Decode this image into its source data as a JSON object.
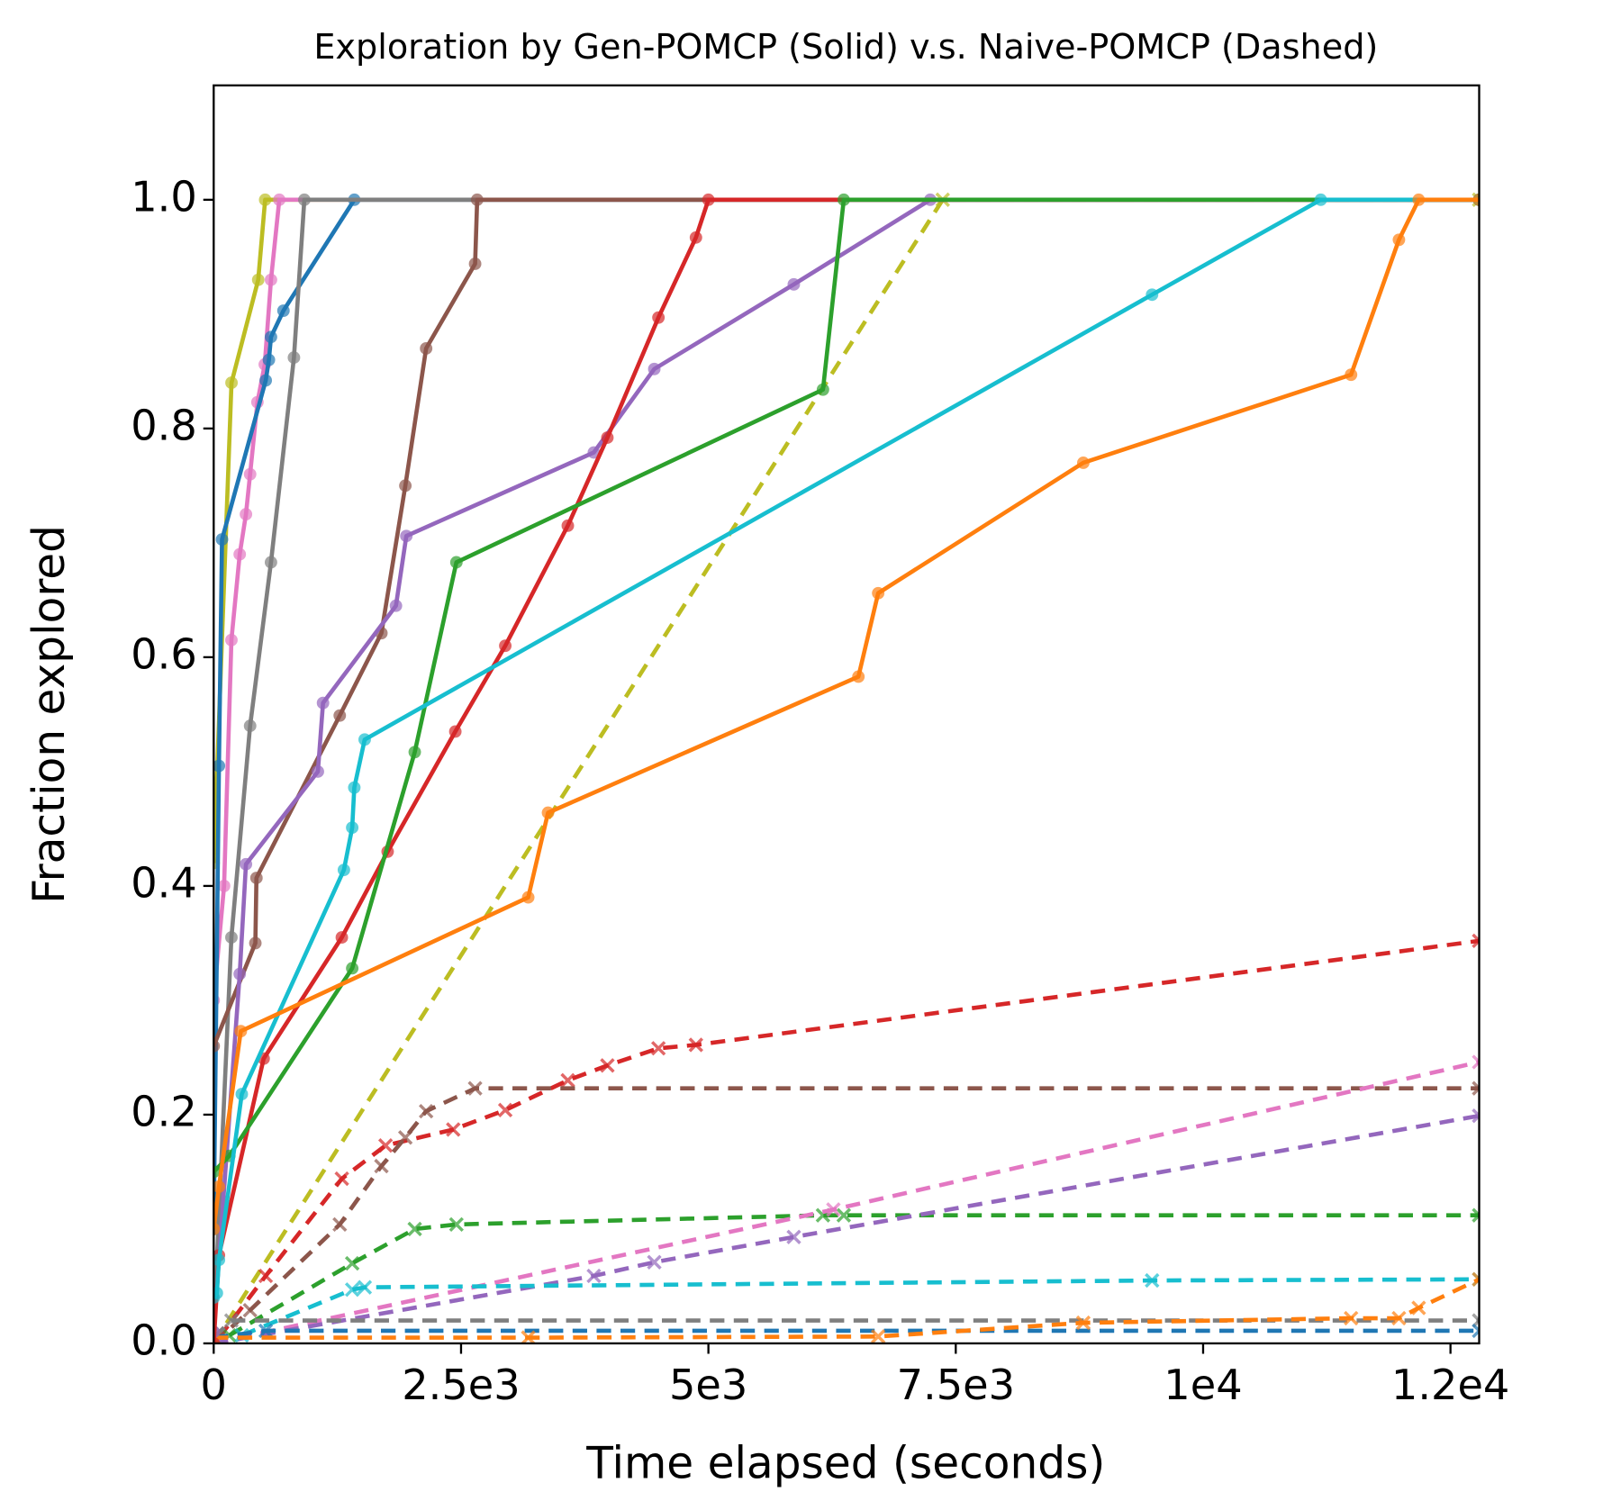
{
  "chart_data": {
    "type": "line",
    "title": "Exploration by Gen-POMCP (Solid) v.s. Naive-POMCP (Dashed)",
    "xlabel": "Time elapsed (seconds)",
    "ylabel": "Fraction explored",
    "xlim": [
      0,
      12790
    ],
    "ylim": [
      0,
      1.1
    ],
    "xticks": [
      0,
      {
        "value": 2500,
        "label": "2.5e3"
      },
      {
        "value": 5000,
        "label": "5e3"
      },
      {
        "value": 7500,
        "label": "7.5e3"
      },
      {
        "value": 10000,
        "label": "1e4"
      },
      {
        "value": 12500,
        "label": "1.2e4"
      }
    ],
    "yticks": [
      {
        "value": 0,
        "label": "0.0"
      },
      0.2,
      0.4,
      0.6,
      0.8,
      {
        "value": 1,
        "label": "1.0"
      }
    ],
    "series": [
      {
        "color": "#bcbd22",
        "linestyle": "dashed",
        "marker": "x",
        "x": [
          0,
          7368,
          12790
        ],
        "values": [
          0,
          1.0,
          1.0
        ]
      },
      {
        "color": "#d62728",
        "linestyle": "dashed",
        "marker": "x",
        "x": [
          53,
          526,
          1295,
          1737,
          2421,
          2947,
          3579,
          3979,
          4495,
          4874,
          12790
        ],
        "values": [
          0.005,
          0.059,
          0.144,
          0.173,
          0.187,
          0.204,
          0.23,
          0.243,
          0.258,
          0.261,
          0.352
        ]
      },
      {
        "color": "#8c564b",
        "linestyle": "dashed",
        "marker": "x",
        "x": [
          0,
          368,
          1274,
          1695,
          1937,
          2147,
          2642,
          12790
        ],
        "values": [
          0,
          0.029,
          0.104,
          0.155,
          0.18,
          0.203,
          0.223,
          0.223
        ]
      },
      {
        "color": "#2ca02c",
        "linestyle": "dashed",
        "marker": "x",
        "x": [
          158,
          1400,
          2032,
          2453,
          6158,
          6368,
          12790
        ],
        "values": [
          0.007,
          0.07,
          0.1,
          0.104,
          0.112,
          0.112,
          0.112
        ]
      },
      {
        "color": "#e377c2",
        "linestyle": "dashed",
        "marker": "x",
        "x": [
          0,
          6263,
          12790
        ],
        "values": [
          0,
          0.117,
          0.246
        ]
      },
      {
        "color": "#9467bd",
        "linestyle": "dashed",
        "marker": "x",
        "x": [
          0,
          3842,
          4453,
          5863,
          12790
        ],
        "values": [
          0,
          0.059,
          0.071,
          0.093,
          0.199
        ]
      },
      {
        "color": "#17becf",
        "linestyle": "dashed",
        "marker": "x",
        "x": [
          284,
          1400,
          1526,
          9484,
          12790
        ],
        "values": [
          0.007,
          0.047,
          0.049,
          0.055,
          0.056
        ]
      },
      {
        "color": "#7f7f7f",
        "linestyle": "dashed",
        "marker": "x",
        "x": [
          0,
          179,
          12790
        ],
        "values": [
          0.005,
          0.02,
          0.02
        ]
      },
      {
        "color": "#1f77b4",
        "linestyle": "dashed",
        "marker": "x",
        "x": [
          0,
          526,
          12790
        ],
        "values": [
          0.005,
          0.011,
          0.011
        ]
      },
      {
        "color": "#ff7f0e",
        "linestyle": "dashed",
        "marker": "x",
        "x": [
          0,
          3179,
          6716,
          8789,
          11495,
          11979,
          12179,
          12790
        ],
        "values": [
          0.005,
          0.005,
          0.006,
          0.018,
          0.022,
          0.022,
          0.031,
          0.056
        ]
      },
      {
        "color": "#bcbd22",
        "linestyle": "solid",
        "marker": "o",
        "x": [
          0,
          180,
          450,
          520,
          12790
        ],
        "values": [
          0.42,
          0.84,
          0.93,
          1.0,
          1.0
        ]
      },
      {
        "color": "#e377c2",
        "linestyle": "solid",
        "marker": "o",
        "x": [
          0,
          105,
          179,
          263,
          326,
          368,
          442,
          516,
          579,
          663,
          12790
        ],
        "values": [
          0.3,
          0.4,
          0.615,
          0.69,
          0.725,
          0.76,
          0.823,
          0.856,
          0.93,
          1.0,
          1.0
        ]
      },
      {
        "color": "#1f77b4",
        "linestyle": "solid",
        "marker": "o",
        "x": [
          0,
          53,
          84,
          526,
          558,
          579,
          705,
          1421,
          12790
        ],
        "values": [
          0.1,
          0.505,
          0.703,
          0.842,
          0.86,
          0.88,
          0.903,
          1.0,
          1.0
        ]
      },
      {
        "color": "#7f7f7f",
        "linestyle": "solid",
        "marker": "o",
        "x": [
          0,
          179,
          368,
          579,
          811,
          916,
          12790
        ],
        "values": [
          0.01,
          0.355,
          0.54,
          0.683,
          0.862,
          1.0,
          1.0
        ]
      },
      {
        "color": "#8c564b",
        "linestyle": "solid",
        "marker": "o",
        "x": [
          0,
          421,
          432,
          1274,
          1695,
          1937,
          2147,
          2642,
          2663,
          12790
        ],
        "values": [
          0.26,
          0.35,
          0.407,
          0.549,
          0.621,
          0.75,
          0.87,
          0.944,
          1.0,
          1.0
        ]
      },
      {
        "color": "#9467bd",
        "linestyle": "solid",
        "marker": "o",
        "x": [
          0,
          263,
          326,
          1053,
          1105,
          1842,
          1947,
          3842,
          4453,
          5863,
          7242,
          12790
        ],
        "values": [
          0.01,
          0.323,
          0.419,
          0.5,
          0.56,
          0.645,
          0.706,
          0.779,
          0.852,
          0.926,
          1.0,
          1.0
        ]
      },
      {
        "color": "#d62728",
        "linestyle": "solid",
        "marker": "o",
        "x": [
          0,
          53,
          505,
          1295,
          1758,
          2442,
          2947,
          3579,
          3979,
          4495,
          4874,
          5000,
          12790
        ],
        "values": [
          0.0,
          0.077,
          0.249,
          0.355,
          0.43,
          0.535,
          0.61,
          0.715,
          0.792,
          0.897,
          0.967,
          1.0,
          1.0
        ]
      },
      {
        "color": "#2ca02c",
        "linestyle": "solid",
        "marker": "o",
        "x": [
          0,
          158,
          1400,
          2032,
          2453,
          6158,
          6368,
          12790
        ],
        "values": [
          0.15,
          0.164,
          0.328,
          0.517,
          0.683,
          0.834,
          1.0,
          1.0
        ]
      },
      {
        "color": "#17becf",
        "linestyle": "solid",
        "marker": "o",
        "x": [
          0,
          32,
          53,
          284,
          1316,
          1400,
          1421,
          1526,
          9484,
          11189,
          12790
        ],
        "values": [
          0.04,
          0.044,
          0.073,
          0.218,
          0.414,
          0.451,
          0.486,
          0.528,
          0.917,
          1.0,
          1.0
        ]
      },
      {
        "color": "#ff7f0e",
        "linestyle": "solid",
        "marker": "o",
        "x": [
          0,
          53,
          274,
          3179,
          3379,
          6516,
          6716,
          8789,
          11495,
          11979,
          12179,
          12790
        ],
        "values": [
          0.1,
          0.137,
          0.273,
          0.39,
          0.464,
          0.583,
          0.656,
          0.77,
          0.847,
          0.965,
          1.0,
          1.0
        ]
      }
    ]
  }
}
